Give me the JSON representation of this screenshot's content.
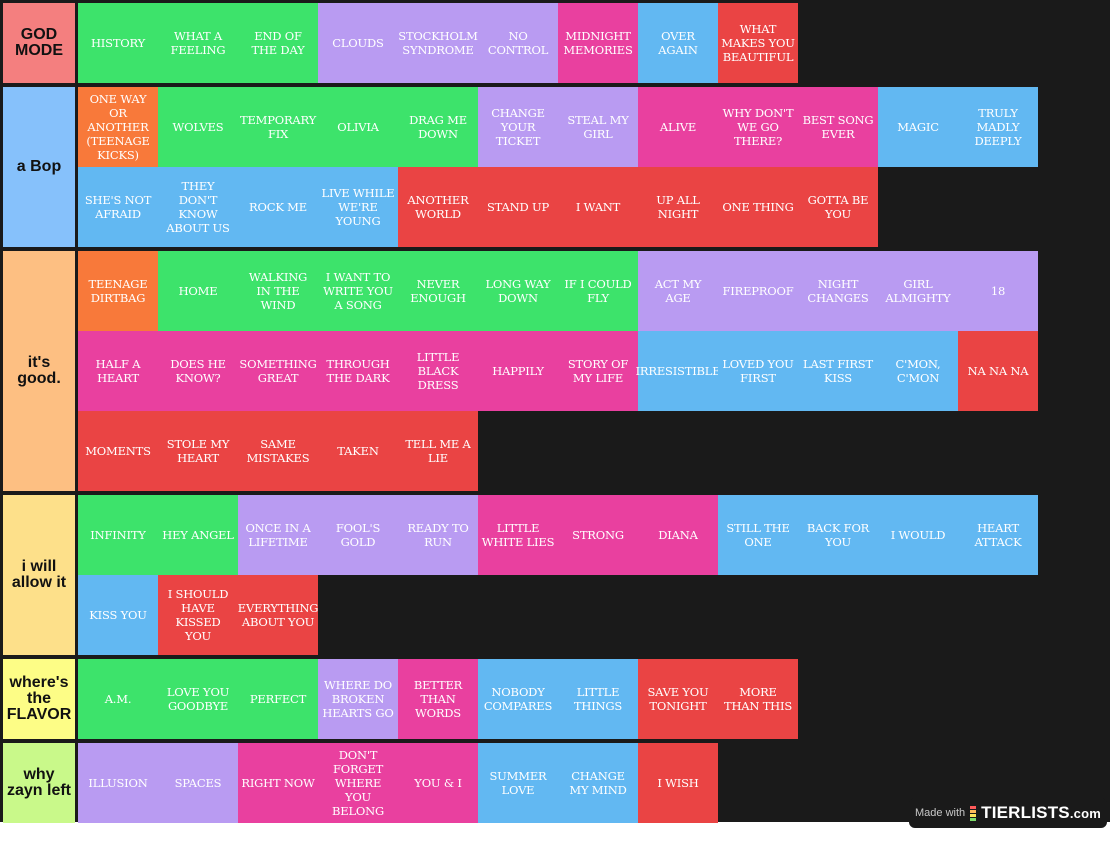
{
  "colors": {
    "green": "#3de36b",
    "purple": "#b99bf2",
    "pink": "#e9409f",
    "blue": "#62b8f2",
    "red": "#ea4444",
    "orange": "#f8793a"
  },
  "watermark": {
    "made_with": "Made with",
    "brand": "TIERLISTS",
    "domain": ".com"
  },
  "tiers": [
    {
      "label": "GOD MODE",
      "color": "#f47f7f",
      "rows": 1,
      "items": [
        {
          "name": "HISTORY",
          "color": "green"
        },
        {
          "name": "WHAT A FEELING",
          "color": "green"
        },
        {
          "name": "END OF THE DAY",
          "color": "green"
        },
        {
          "name": "CLOUDS",
          "color": "purple"
        },
        {
          "name": "STOCKHOLM SYNDROME",
          "color": "purple"
        },
        {
          "name": "NO CONTROL",
          "color": "purple"
        },
        {
          "name": "MIDNIGHT MEMORIES",
          "color": "pink"
        },
        {
          "name": "OVER AGAIN",
          "color": "blue"
        },
        {
          "name": "WHAT MAKES YOU BEAUTIFUL",
          "color": "red"
        }
      ]
    },
    {
      "label": "a Bop",
      "color": "#86c1fb",
      "rows": 2,
      "items": [
        {
          "name": "ONE WAY OR ANOTHER (TEENAGE KICKS)",
          "color": "orange"
        },
        {
          "name": "WOLVES",
          "color": "green"
        },
        {
          "name": "TEMPORARY FIX",
          "color": "green"
        },
        {
          "name": "OLIVIA",
          "color": "green"
        },
        {
          "name": "DRAG ME DOWN",
          "color": "green"
        },
        {
          "name": "CHANGE YOUR TICKET",
          "color": "purple"
        },
        {
          "name": "STEAL MY GIRL",
          "color": "purple"
        },
        {
          "name": "ALIVE",
          "color": "pink"
        },
        {
          "name": "WHY DON'T WE GO THERE?",
          "color": "pink"
        },
        {
          "name": "BEST SONG EVER",
          "color": "pink"
        },
        {
          "name": "MAGIC",
          "color": "blue"
        },
        {
          "name": "TRULY MADLY DEEPLY",
          "color": "blue"
        },
        {
          "name": "SHE'S NOT AFRAID",
          "color": "blue"
        },
        {
          "name": "THEY DON'T KNOW ABOUT US",
          "color": "blue"
        },
        {
          "name": "ROCK ME",
          "color": "blue"
        },
        {
          "name": "LIVE WHILE WE'RE YOUNG",
          "color": "blue"
        },
        {
          "name": "ANOTHER WORLD",
          "color": "red"
        },
        {
          "name": "STAND UP",
          "color": "red"
        },
        {
          "name": "I WANT",
          "color": "red"
        },
        {
          "name": "UP ALL NIGHT",
          "color": "red"
        },
        {
          "name": "ONE THING",
          "color": "red"
        },
        {
          "name": "GOTTA BE YOU",
          "color": "red"
        }
      ]
    },
    {
      "label": "it's good.",
      "color": "#fdbf82",
      "rows": 3,
      "items": [
        {
          "name": "TEENAGE DIRTBAG",
          "color": "orange"
        },
        {
          "name": "HOME",
          "color": "green"
        },
        {
          "name": "WALKING IN THE WIND",
          "color": "green"
        },
        {
          "name": "I WANT TO WRITE YOU A SONG",
          "color": "green"
        },
        {
          "name": "NEVER ENOUGH",
          "color": "green"
        },
        {
          "name": "LONG WAY DOWN",
          "color": "green"
        },
        {
          "name": "IF I COULD FLY",
          "color": "green"
        },
        {
          "name": "ACT MY AGE",
          "color": "purple"
        },
        {
          "name": "FIREPROOF",
          "color": "purple"
        },
        {
          "name": "NIGHT CHANGES",
          "color": "purple"
        },
        {
          "name": "GIRL ALMIGHTY",
          "color": "purple"
        },
        {
          "name": "18",
          "color": "purple"
        },
        {
          "name": "HALF A HEART",
          "color": "pink"
        },
        {
          "name": "DOES HE KNOW?",
          "color": "pink"
        },
        {
          "name": "SOMETHING GREAT",
          "color": "pink"
        },
        {
          "name": "THROUGH THE DARK",
          "color": "pink"
        },
        {
          "name": "LITTLE BLACK DRESS",
          "color": "pink"
        },
        {
          "name": "HAPPILY",
          "color": "pink"
        },
        {
          "name": "STORY OF MY LIFE",
          "color": "pink"
        },
        {
          "name": "IRRESISTIBLE",
          "color": "blue"
        },
        {
          "name": "LOVED YOU FIRST",
          "color": "blue"
        },
        {
          "name": "LAST FIRST KISS",
          "color": "blue"
        },
        {
          "name": "C'MON, C'MON",
          "color": "blue"
        },
        {
          "name": "NA NA NA",
          "color": "red"
        },
        {
          "name": "MOMENTS",
          "color": "red"
        },
        {
          "name": "STOLE MY HEART",
          "color": "red"
        },
        {
          "name": "SAME MISTAKES",
          "color": "red"
        },
        {
          "name": "TAKEN",
          "color": "red"
        },
        {
          "name": "TELL ME A LIE",
          "color": "red"
        }
      ]
    },
    {
      "label": "i will allow it",
      "color": "#fde08a",
      "rows": 2,
      "items": [
        {
          "name": "INFINITY",
          "color": "green"
        },
        {
          "name": "HEY ANGEL",
          "color": "green"
        },
        {
          "name": "ONCE IN A LIFETIME",
          "color": "purple"
        },
        {
          "name": "FOOL'S GOLD",
          "color": "purple"
        },
        {
          "name": "READY TO RUN",
          "color": "purple"
        },
        {
          "name": "LITTLE WHITE LIES",
          "color": "pink"
        },
        {
          "name": "STRONG",
          "color": "pink"
        },
        {
          "name": "DIANA",
          "color": "pink"
        },
        {
          "name": "STILL THE ONE",
          "color": "blue"
        },
        {
          "name": "BACK FOR YOU",
          "color": "blue"
        },
        {
          "name": "I WOULD",
          "color": "blue"
        },
        {
          "name": "HEART ATTACK",
          "color": "blue"
        },
        {
          "name": "KISS YOU",
          "color": "blue"
        },
        {
          "name": "I SHOULD HAVE KISSED YOU",
          "color": "red"
        },
        {
          "name": "EVERYTHING ABOUT YOU",
          "color": "red"
        }
      ]
    },
    {
      "label": "where's the FLAVOR",
      "color": "#fdfd86",
      "rows": 1,
      "items": [
        {
          "name": "A.M.",
          "color": "green"
        },
        {
          "name": "LOVE YOU GOODBYE",
          "color": "green"
        },
        {
          "name": "PERFECT",
          "color": "green"
        },
        {
          "name": "WHERE DO BROKEN HEARTS GO",
          "color": "purple"
        },
        {
          "name": "BETTER THAN WORDS",
          "color": "pink"
        },
        {
          "name": "NOBODY COMPARES",
          "color": "blue"
        },
        {
          "name": "LITTLE THINGS",
          "color": "blue"
        },
        {
          "name": "SAVE YOU TONIGHT",
          "color": "red"
        },
        {
          "name": "MORE THAN THIS",
          "color": "red"
        }
      ]
    },
    {
      "label": "why zayn left",
      "color": "#c9f98a",
      "rows": 1,
      "items": [
        {
          "name": "ILLUSION",
          "color": "purple"
        },
        {
          "name": "SPACES",
          "color": "purple"
        },
        {
          "name": "RIGHT NOW",
          "color": "pink"
        },
        {
          "name": "DON'T FORGET WHERE YOU BELONG",
          "color": "pink"
        },
        {
          "name": "YOU & I",
          "color": "pink"
        },
        {
          "name": "SUMMER LOVE",
          "color": "blue"
        },
        {
          "name": "CHANGE MY MIND",
          "color": "blue"
        },
        {
          "name": "I WISH",
          "color": "red"
        }
      ]
    }
  ]
}
